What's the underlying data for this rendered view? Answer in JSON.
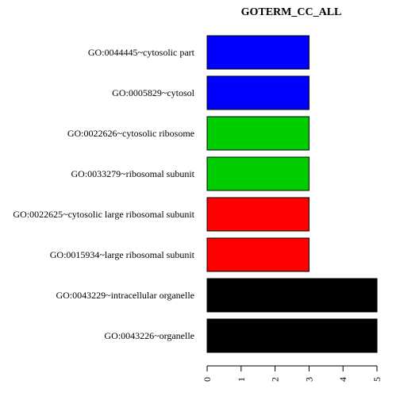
{
  "chart_data": {
    "type": "bar",
    "orientation": "horizontal",
    "title": "GOTERM_CC_ALL",
    "xlabel": "",
    "ylabel": "",
    "xlim": [
      0,
      5
    ],
    "ticks": [
      "0",
      "1",
      "2",
      "3",
      "4",
      "5"
    ],
    "grid": false,
    "categories": [
      "GO:0044445~cytosolic part",
      "GO:0005829~cytosol",
      "GO:0022626~cytosolic ribosome",
      "GO:0033279~ribosomal subunit",
      "GO:0022625~cytosolic large ribosomal subunit",
      "GO:0015934~large ribosomal subunit",
      "GO:0043229~intracellular organelle",
      "GO:0043226~organelle"
    ],
    "values": [
      3,
      3,
      3,
      3,
      3,
      3,
      5,
      5
    ],
    "colors": [
      "#0000ff",
      "#0000ff",
      "#00cd00",
      "#00cd00",
      "#ff0000",
      "#ff0000",
      "#000000",
      "#000000"
    ]
  }
}
